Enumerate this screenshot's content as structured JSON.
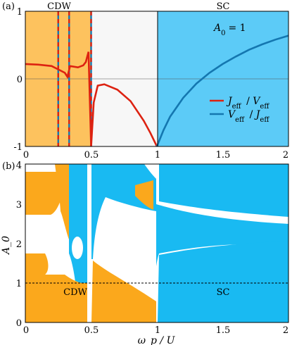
{
  "panel_a": {
    "label": "(a)",
    "region_left_label": "CDW",
    "region_right_label": "SC",
    "param_label": "A",
    "param_sub": "0",
    "param_value": "= 1",
    "legend": [
      {
        "num": "J",
        "num_sub": "eff",
        "den": "V",
        "den_sub": "eff",
        "color": "#dd2211"
      },
      {
        "num": "V",
        "num_sub": "eff",
        "den": "J",
        "den_sub": "eff",
        "color": "#1477b0"
      }
    ]
  },
  "panel_b": {
    "label": "(b)",
    "region_left_label": "CDW",
    "region_right_label": "SC"
  },
  "colors": {
    "cdw": "#fba81c",
    "cdw_light": "#fdc25e",
    "sc": "#19baf2",
    "sc_light": "#5ccbf7",
    "neutral": "#f7f7f7",
    "red": "#dd2211",
    "blue": "#1477b0"
  },
  "chart_data": [
    {
      "type": "line",
      "panel": "a",
      "xlim": [
        0,
        2
      ],
      "ylim": [
        -1,
        1
      ],
      "xticks": [
        "0",
        "0.5",
        "1",
        "1.5",
        "2"
      ],
      "yticks": [
        "-1",
        "0",
        "1"
      ],
      "regions": [
        {
          "label": "CDW",
          "x": [
            0,
            0.5
          ]
        },
        {
          "label": "SC",
          "x": [
            1,
            2
          ]
        }
      ],
      "series": [
        {
          "name": "J_eff / V_eff",
          "x": [
            0.0,
            0.1,
            0.2,
            0.24,
            0.26,
            0.3,
            0.32,
            0.34,
            0.4,
            0.44,
            0.46,
            0.48,
            0.5,
            0.52,
            0.55,
            0.6,
            0.7,
            0.8,
            0.9,
            0.95,
            1.0
          ],
          "y": [
            0.22,
            0.21,
            0.19,
            0.15,
            0.13,
            0.09,
            0.03,
            0.19,
            0.17,
            0.2,
            0.25,
            0.4,
            -1.0,
            -0.35,
            -0.1,
            -0.08,
            -0.16,
            -0.33,
            -0.62,
            -0.8,
            -1.0
          ]
        },
        {
          "name": "V_eff / J_eff",
          "x": [
            1.0,
            1.05,
            1.1,
            1.2,
            1.3,
            1.4,
            1.5,
            1.6,
            1.7,
            1.8,
            1.9,
            2.0
          ],
          "y": [
            -1.0,
            -0.76,
            -0.56,
            -0.28,
            -0.07,
            0.09,
            0.22,
            0.33,
            0.43,
            0.51,
            0.58,
            0.64
          ]
        }
      ],
      "poles_x": [
        0.25,
        0.333,
        0.5
      ]
    },
    {
      "type": "heatmap",
      "panel": "b",
      "xlabel": "ω_p / U",
      "ylabel": "A_0",
      "xlim": [
        0,
        2
      ],
      "ylim": [
        0,
        4
      ],
      "xticks": [
        "0",
        "0.5",
        "1",
        "1.5",
        "2"
      ],
      "yticks": [
        "0",
        "1",
        "2",
        "3",
        "4"
      ],
      "categories": [
        "CDW",
        "SC"
      ],
      "reference_line_y": 1
    }
  ]
}
